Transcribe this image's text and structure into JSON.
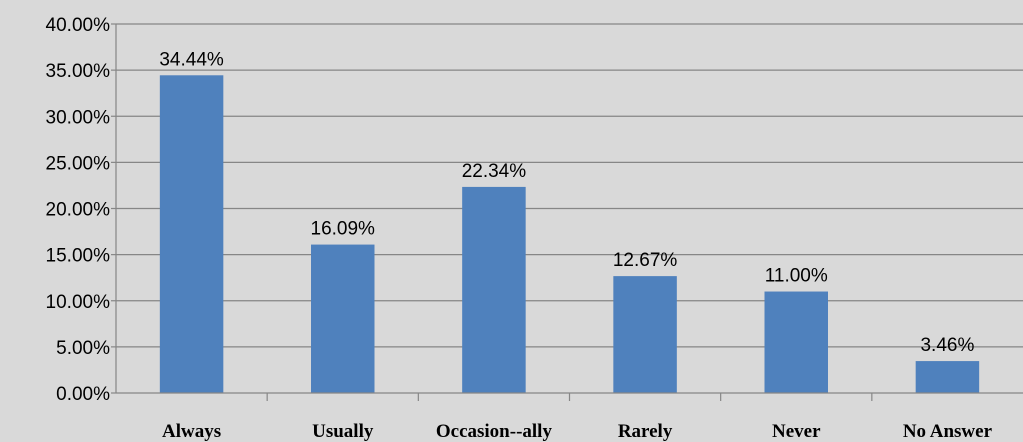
{
  "chart_data": {
    "type": "bar",
    "title": "",
    "xlabel": "",
    "ylabel": "",
    "categories": [
      "Always",
      "Usually",
      "Occasion--ally",
      "Rarely",
      "Never",
      "No Answer"
    ],
    "values": [
      34.44,
      16.09,
      22.34,
      12.67,
      11.0,
      3.46
    ],
    "data_labels": [
      "34.44%",
      "16.09%",
      "22.34%",
      "12.67%",
      "11.00%",
      "3.46%"
    ],
    "yticks": [
      0,
      5,
      10,
      15,
      20,
      25,
      30,
      35,
      40
    ],
    "ytick_labels": [
      "0.00%",
      "5.00%",
      "10.00%",
      "15.00%",
      "20.00%",
      "25.00%",
      "30.00%",
      "35.00%",
      "40.00%"
    ],
    "ylim": [
      0,
      40
    ],
    "grid": true,
    "legend": "none",
    "colors": {
      "bar": "#4f81bd",
      "plot_background": "#d9d9d9",
      "gridline": "#868686",
      "axis": "#868686"
    }
  }
}
